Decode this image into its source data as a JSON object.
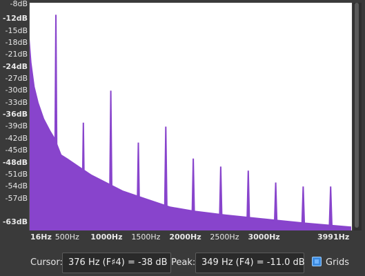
{
  "chart_data": {
    "type": "area",
    "color": "#8844cc",
    "y_axis": {
      "unit": "dB",
      "range": [
        -65,
        -8
      ],
      "ticks": [
        {
          "label": "-8dB",
          "value": -8,
          "major": false
        },
        {
          "label": "-12dB",
          "value": -12,
          "major": true
        },
        {
          "label": "-15dB",
          "value": -15,
          "major": false
        },
        {
          "label": "-18dB",
          "value": -18,
          "major": false
        },
        {
          "label": "-21dB",
          "value": -21,
          "major": false
        },
        {
          "label": "-24dB",
          "value": -24,
          "major": true
        },
        {
          "label": "-27dB",
          "value": -27,
          "major": false
        },
        {
          "label": "-30dB",
          "value": -30,
          "major": false
        },
        {
          "label": "-33dB",
          "value": -33,
          "major": false
        },
        {
          "label": "-36dB",
          "value": -36,
          "major": true
        },
        {
          "label": "-39dB",
          "value": -39,
          "major": false
        },
        {
          "label": "-42dB",
          "value": -42,
          "major": false
        },
        {
          "label": "-45dB",
          "value": -45,
          "major": false
        },
        {
          "label": "-48dB",
          "value": -48,
          "major": true
        },
        {
          "label": "-51dB",
          "value": -51,
          "major": false
        },
        {
          "label": "-54dB",
          "value": -54,
          "major": false
        },
        {
          "label": "-57dB",
          "value": -57,
          "major": false
        },
        {
          "label": "-63dB",
          "value": -63,
          "major": true
        }
      ]
    },
    "x_axis": {
      "unit": "Hz",
      "range": [
        16,
        4100
      ],
      "ticks": [
        {
          "label": "16Hz",
          "value": 16,
          "major": true
        },
        {
          "label": "500Hz",
          "value": 500,
          "major": false
        },
        {
          "label": "1000Hz",
          "value": 1000,
          "major": true
        },
        {
          "label": "1500Hz",
          "value": 1500,
          "major": false
        },
        {
          "label": "2000Hz",
          "value": 2000,
          "major": true
        },
        {
          "label": "2500Hz",
          "value": 2500,
          "major": false
        },
        {
          "label": "3000Hz",
          "value": 3000,
          "major": true
        },
        {
          "label": "3991Hz",
          "value": 3991,
          "major": true
        }
      ]
    },
    "envelope": [
      {
        "x": 16,
        "y": -17
      },
      {
        "x": 40,
        "y": -23
      },
      {
        "x": 80,
        "y": -29
      },
      {
        "x": 130,
        "y": -33
      },
      {
        "x": 200,
        "y": -37
      },
      {
        "x": 280,
        "y": -40
      },
      {
        "x": 340,
        "y": -42
      },
      {
        "x": 420,
        "y": -46
      },
      {
        "x": 500,
        "y": -47
      },
      {
        "x": 650,
        "y": -49
      },
      {
        "x": 800,
        "y": -51
      },
      {
        "x": 1000,
        "y": -53
      },
      {
        "x": 1200,
        "y": -55
      },
      {
        "x": 1500,
        "y": -57
      },
      {
        "x": 1800,
        "y": -59
      },
      {
        "x": 2100,
        "y": -60
      },
      {
        "x": 2500,
        "y": -61
      },
      {
        "x": 3000,
        "y": -62
      },
      {
        "x": 3500,
        "y": -63
      },
      {
        "x": 4100,
        "y": -64
      }
    ],
    "peaks": [
      {
        "x": 349,
        "y": -11
      },
      {
        "x": 698,
        "y": -38
      },
      {
        "x": 1047,
        "y": -30
      },
      {
        "x": 1396,
        "y": -43
      },
      {
        "x": 1745,
        "y": -39
      },
      {
        "x": 2094,
        "y": -47
      },
      {
        "x": 2443,
        "y": -49
      },
      {
        "x": 2792,
        "y": -50
      },
      {
        "x": 3141,
        "y": -53
      },
      {
        "x": 3490,
        "y": -54
      },
      {
        "x": 3839,
        "y": -54
      }
    ]
  },
  "status": {
    "cursor_label": "Cursor:",
    "cursor_value": "376 Hz (F♯4) = -38 dB",
    "peak_label": "Peak:",
    "peak_value": "349 Hz (F4) = -11.0 dB",
    "grids_label": "Grids",
    "grids_checked": true
  }
}
